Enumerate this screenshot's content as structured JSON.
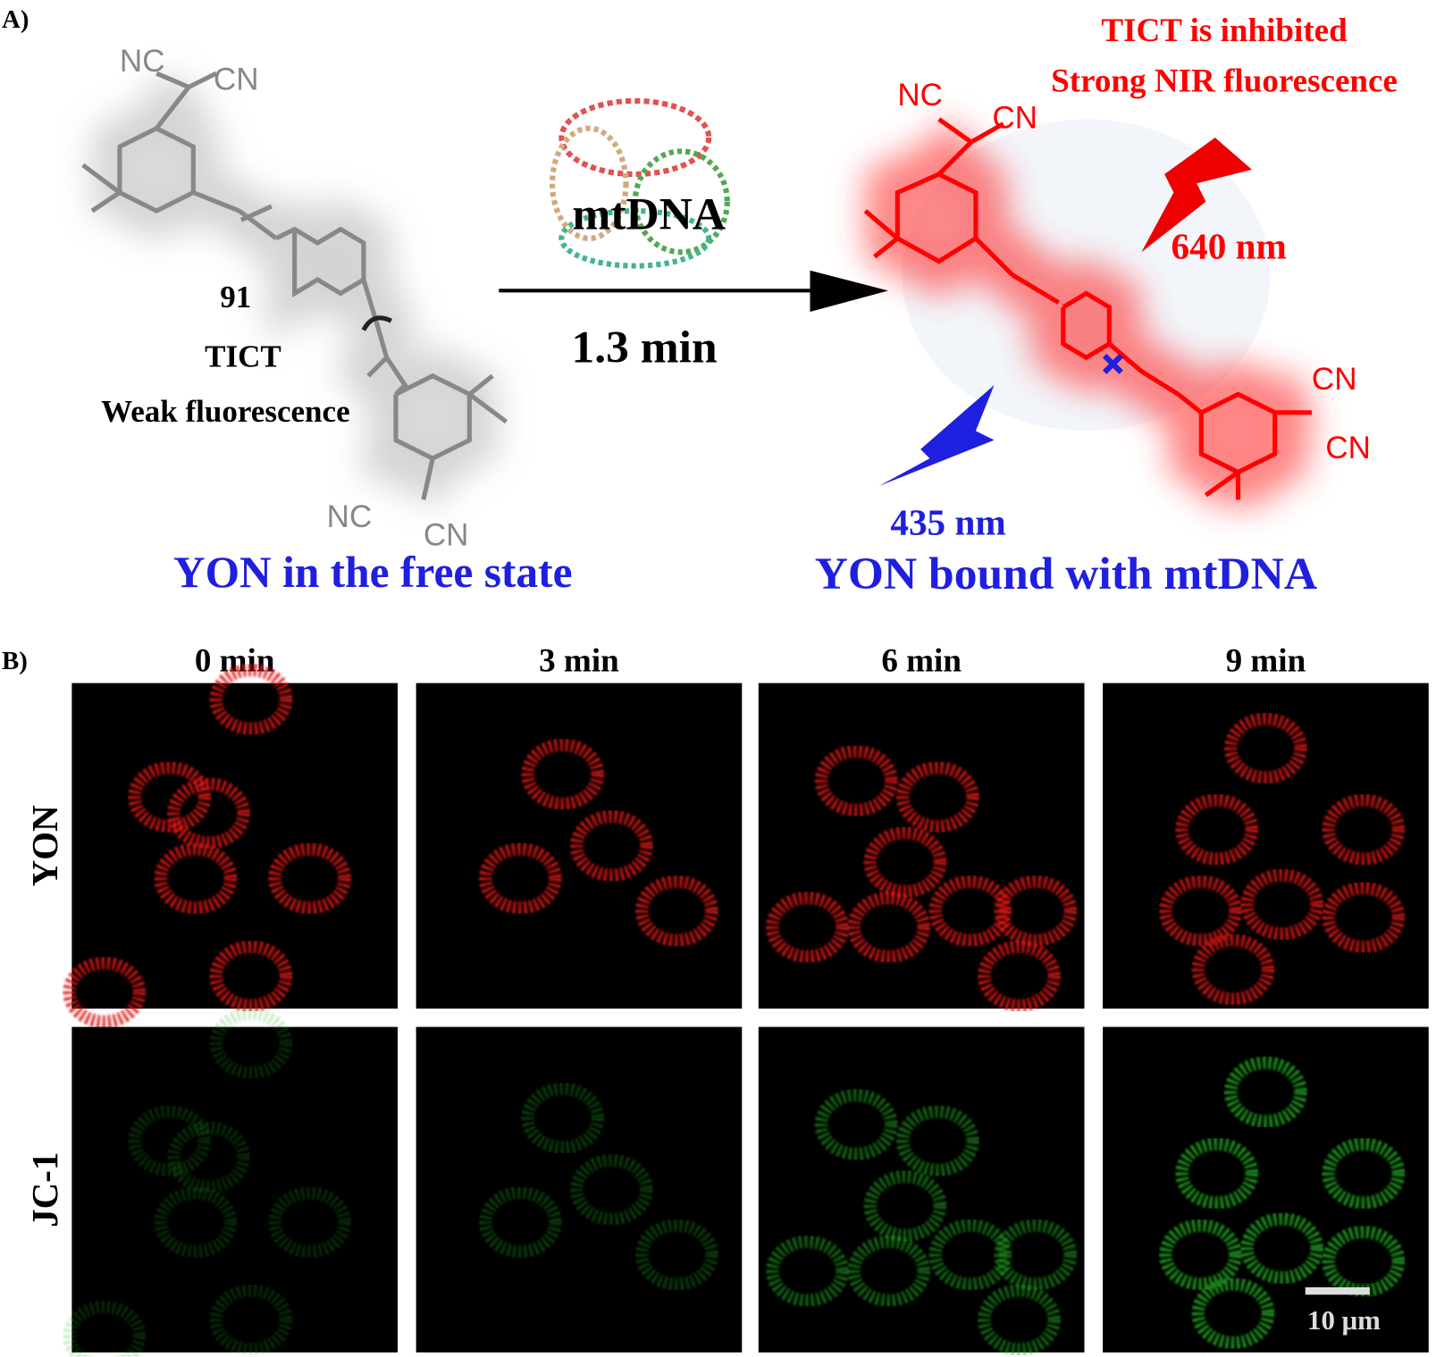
{
  "panel_a": {
    "label": "A)",
    "free_molecule": {
      "substituent_labels": [
        "NC",
        "CN",
        "NC",
        "CN"
      ],
      "compound": "91",
      "mechanism": "TICT",
      "emission": "Weak fluorescence",
      "caption": "YON in the free state"
    },
    "arrow": {
      "target": "mtDNA",
      "time": "1.3 min"
    },
    "bound_molecule": {
      "substituent_labels": [
        "NC",
        "CN",
        "CN",
        "CN"
      ],
      "status": [
        "TICT  is inhibited",
        "Strong NIR fluorescence"
      ],
      "emissions": [
        "640 nm",
        "435 nm"
      ],
      "caption": "YON bound with mtDNA"
    }
  },
  "panel_b": {
    "label": "B)",
    "columns": [
      "0 min",
      "3 min",
      "6 min",
      "9 min"
    ],
    "rows": [
      "YON",
      "JC-1"
    ],
    "scale_bar": "10 μm"
  }
}
